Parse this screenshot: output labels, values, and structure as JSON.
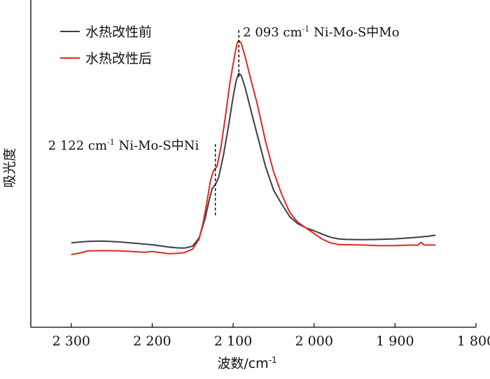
{
  "chart_data": {
    "type": "line",
    "xlabel": "波数/cm",
    "xlabel_sup": "-1",
    "ylabel": "吸光度",
    "xlim": [
      2350,
      1800
    ],
    "ylim": [
      0,
      1
    ],
    "x_reversed": true,
    "grid": false,
    "legend_position": "top-left",
    "x_ticks": [
      {
        "value": 2300,
        "label": "2 300"
      },
      {
        "value": 2200,
        "label": "2 200"
      },
      {
        "value": 2100,
        "label": "2 100"
      },
      {
        "value": 2000,
        "label": "2 000"
      },
      {
        "value": 1900,
        "label": "1 900"
      },
      {
        "value": 1800,
        "label": "1 800"
      }
    ],
    "series": [
      {
        "name": "水热改性前",
        "color": "#3a3d47",
        "points": [
          [
            2300,
            0.207
          ],
          [
            2280,
            0.212
          ],
          [
            2260,
            0.213
          ],
          [
            2240,
            0.21
          ],
          [
            2220,
            0.205
          ],
          [
            2200,
            0.2
          ],
          [
            2180,
            0.192
          ],
          [
            2170,
            0.189
          ],
          [
            2160,
            0.188
          ],
          [
            2150,
            0.195
          ],
          [
            2142,
            0.225
          ],
          [
            2135,
            0.29
          ],
          [
            2130,
            0.355
          ],
          [
            2126,
            0.4
          ],
          [
            2122,
            0.415
          ],
          [
            2118,
            0.44
          ],
          [
            2112,
            0.52
          ],
          [
            2106,
            0.62
          ],
          [
            2100,
            0.73
          ],
          [
            2096,
            0.79
          ],
          [
            2093,
            0.813
          ],
          [
            2090,
            0.805
          ],
          [
            2085,
            0.76
          ],
          [
            2078,
            0.68
          ],
          [
            2070,
            0.59
          ],
          [
            2060,
            0.48
          ],
          [
            2050,
            0.395
          ],
          [
            2040,
            0.345
          ],
          [
            2030,
            0.3
          ],
          [
            2020,
            0.275
          ],
          [
            2010,
            0.26
          ],
          [
            2000,
            0.25
          ],
          [
            1990,
            0.238
          ],
          [
            1980,
            0.227
          ],
          [
            1970,
            0.221
          ],
          [
            1960,
            0.219
          ],
          [
            1940,
            0.218
          ],
          [
            1920,
            0.219
          ],
          [
            1900,
            0.221
          ],
          [
            1880,
            0.225
          ],
          [
            1860,
            0.23
          ],
          [
            1850,
            0.234
          ]
        ]
      },
      {
        "name": "水热改性后",
        "color": "#e0291f",
        "points": [
          [
            2300,
            0.165
          ],
          [
            2290,
            0.17
          ],
          [
            2280,
            0.178
          ],
          [
            2260,
            0.179
          ],
          [
            2240,
            0.178
          ],
          [
            2220,
            0.175
          ],
          [
            2210,
            0.173
          ],
          [
            2200,
            0.176
          ],
          [
            2190,
            0.172
          ],
          [
            2180,
            0.168
          ],
          [
            2170,
            0.169
          ],
          [
            2160,
            0.172
          ],
          [
            2150,
            0.185
          ],
          [
            2142,
            0.22
          ],
          [
            2137,
            0.28
          ],
          [
            2132,
            0.36
          ],
          [
            2128,
            0.43
          ],
          [
            2124,
            0.466
          ],
          [
            2120,
            0.48
          ],
          [
            2115,
            0.55
          ],
          [
            2110,
            0.65
          ],
          [
            2104,
            0.78
          ],
          [
            2098,
            0.88
          ],
          [
            2095,
            0.922
          ],
          [
            2093,
            0.93
          ],
          [
            2090,
            0.92
          ],
          [
            2085,
            0.87
          ],
          [
            2078,
            0.79
          ],
          [
            2070,
            0.7
          ],
          [
            2060,
            0.57
          ],
          [
            2050,
            0.46
          ],
          [
            2040,
            0.38
          ],
          [
            2030,
            0.315
          ],
          [
            2020,
            0.28
          ],
          [
            2010,
            0.26
          ],
          [
            2000,
            0.24
          ],
          [
            1990,
            0.22
          ],
          [
            1980,
            0.207
          ],
          [
            1970,
            0.201
          ],
          [
            1960,
            0.2
          ],
          [
            1940,
            0.199
          ],
          [
            1920,
            0.197
          ],
          [
            1900,
            0.197
          ],
          [
            1880,
            0.199
          ],
          [
            1872,
            0.198
          ],
          [
            1868,
            0.209
          ],
          [
            1864,
            0.199
          ],
          [
            1850,
            0.199
          ]
        ]
      }
    ],
    "annotations": [
      {
        "x": 2093,
        "text": "2 093 cm",
        "sup": "-1",
        "suffix": " Ni-Mo-S中Mo",
        "line_from": 0.8,
        "line_to": 0.975
      },
      {
        "x": 2122,
        "text": "2 122 cm",
        "sup": "-1",
        "suffix": " Ni-Mo-S中Ni",
        "line_from": 0.305,
        "line_to": 0.56
      }
    ]
  }
}
